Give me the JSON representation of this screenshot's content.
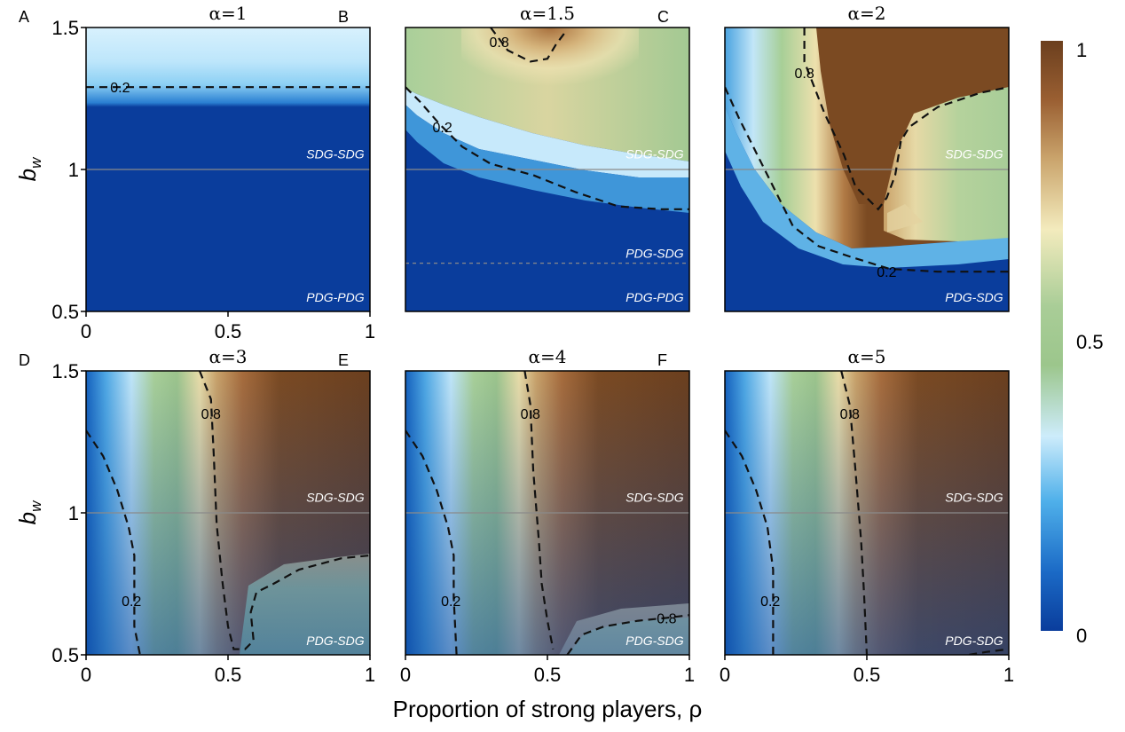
{
  "colors": {
    "deep_blue": "#0a3d9c",
    "light_blue": "#b9e3fb",
    "cream": "#f2e7b8",
    "green": "#9cc48c",
    "brown": "#7b4a22",
    "dark_brown": "#6b3f1e",
    "contour": "#000000",
    "divider": "#8a8a8a"
  },
  "colorbar": {
    "min_label": "0",
    "mid_label": "0.5",
    "max_label": "1"
  },
  "xaxis_title": "Proportion of strong players, ρ",
  "ylabel_base": "b",
  "ylabel_sub": "w",
  "chart_data": [
    {
      "type": "heatmap",
      "letter": "A",
      "title": "α=1",
      "xlim": [
        0,
        1
      ],
      "ylim": [
        0.5,
        1.5
      ],
      "xticks": [
        "0",
        "0.5",
        "1"
      ],
      "yticks": [
        "0.5",
        "1",
        "1.5"
      ],
      "divider_y": 1.0,
      "regions": [
        {
          "label": "SDG-SDG",
          "x": 0.98,
          "y": 1.055
        },
        {
          "label": "PDG-PDG",
          "x": 0.98,
          "y": 0.55
        }
      ],
      "bands": [
        {
          "y_from": 1.22,
          "y_to": 1.5,
          "top": "light",
          "bottom": "blue"
        }
      ],
      "contours": [
        {
          "level": "0.2",
          "label_at": [
            0.12,
            1.29
          ],
          "points": [
            [
              0.0,
              1.29
            ],
            [
              1.0,
              1.29
            ]
          ]
        }
      ]
    },
    {
      "type": "heatmap",
      "letter": "B",
      "title": "α=1.5",
      "xlim": [
        0,
        1
      ],
      "ylim": [
        0.5,
        1.5
      ],
      "xticks": [],
      "yticks": [],
      "divider_y": 1.0,
      "divider2_y": 0.67,
      "regions": [
        {
          "label": "SDG-SDG",
          "x": 0.98,
          "y": 1.055
        },
        {
          "label": "PDG-SDG",
          "x": 0.98,
          "y": 0.705
        },
        {
          "label": "PDG-PDG",
          "x": 0.98,
          "y": 0.55
        }
      ],
      "contours": [
        {
          "level": "0.2",
          "label_at": [
            0.13,
            1.15
          ],
          "points": [
            [
              0.0,
              1.29
            ],
            [
              0.05,
              1.24
            ],
            [
              0.12,
              1.16
            ],
            [
              0.2,
              1.08
            ],
            [
              0.3,
              1.02
            ],
            [
              0.45,
              0.98
            ],
            [
              0.6,
              0.92
            ],
            [
              0.75,
              0.87
            ],
            [
              0.9,
              0.86
            ],
            [
              1.0,
              0.86
            ]
          ]
        },
        {
          "level": "0.8",
          "label_at": [
            0.33,
            1.45
          ],
          "points": [
            [
              0.3,
              1.5
            ],
            [
              0.36,
              1.42
            ],
            [
              0.44,
              1.38
            ],
            [
              0.5,
              1.39
            ],
            [
              0.53,
              1.44
            ],
            [
              0.56,
              1.48
            ]
          ]
        }
      ]
    },
    {
      "type": "heatmap",
      "letter": "C",
      "title": "α=2",
      "xlim": [
        0,
        1
      ],
      "ylim": [
        0.5,
        1.5
      ],
      "xticks": [],
      "yticks": [],
      "divider_y": 1.0,
      "regions": [
        {
          "label": "SDG-SDG",
          "x": 0.98,
          "y": 1.055
        },
        {
          "label": "PDG-SDG",
          "x": 0.98,
          "y": 0.55
        }
      ],
      "contours": [
        {
          "level": "0.2",
          "label_at": [
            0.57,
            0.64
          ],
          "points": [
            [
              0.0,
              1.29
            ],
            [
              0.05,
              1.18
            ],
            [
              0.12,
              1.04
            ],
            [
              0.18,
              0.92
            ],
            [
              0.24,
              0.8
            ],
            [
              0.33,
              0.73
            ],
            [
              0.45,
              0.69
            ],
            [
              0.58,
              0.65
            ],
            [
              0.75,
              0.64
            ],
            [
              0.9,
              0.64
            ],
            [
              1.0,
              0.64
            ]
          ]
        },
        {
          "level": "0.8",
          "label_at": [
            0.28,
            1.34
          ],
          "points": [
            [
              0.28,
              1.5
            ],
            [
              0.28,
              1.38
            ],
            [
              0.35,
              1.2
            ],
            [
              0.42,
              1.05
            ],
            [
              0.46,
              0.94
            ],
            [
              0.5,
              0.9
            ],
            [
              0.54,
              0.86
            ],
            [
              0.57,
              0.9
            ],
            [
              0.6,
              0.98
            ],
            [
              0.62,
              1.1
            ],
            [
              0.65,
              1.15
            ],
            [
              0.75,
              1.22
            ],
            [
              0.9,
              1.27
            ],
            [
              1.0,
              1.29
            ]
          ]
        }
      ]
    },
    {
      "type": "heatmap",
      "letter": "D",
      "title": "α=3",
      "xlim": [
        0,
        1
      ],
      "ylim": [
        0.5,
        1.5
      ],
      "xticks": [
        "0",
        "0.5",
        "1"
      ],
      "yticks": [
        "0.5",
        "1",
        "1.5"
      ],
      "divider_y": 1.0,
      "regions": [
        {
          "label": "SDG-SDG",
          "x": 0.98,
          "y": 1.055
        },
        {
          "label": "PDG-SDG",
          "x": 0.98,
          "y": 0.55
        }
      ],
      "contours": [
        {
          "level": "0.2",
          "label_at": [
            0.16,
            0.69
          ],
          "points": [
            [
              0.0,
              1.29
            ],
            [
              0.06,
              1.2
            ],
            [
              0.11,
              1.08
            ],
            [
              0.15,
              0.95
            ],
            [
              0.17,
              0.85
            ],
            [
              0.17,
              0.72
            ],
            [
              0.17,
              0.6
            ],
            [
              0.19,
              0.5
            ]
          ]
        },
        {
          "level": "0.8",
          "label_at": [
            0.44,
            1.35
          ],
          "points": [
            [
              0.4,
              1.5
            ],
            [
              0.44,
              1.4
            ],
            [
              0.45,
              1.2
            ],
            [
              0.46,
              0.96
            ],
            [
              0.48,
              0.76
            ],
            [
              0.5,
              0.6
            ],
            [
              0.52,
              0.52
            ],
            [
              0.56,
              0.52
            ],
            [
              0.59,
              0.55
            ],
            [
              0.58,
              0.65
            ],
            [
              0.6,
              0.72
            ],
            [
              0.66,
              0.75
            ],
            [
              0.75,
              0.8
            ],
            [
              0.9,
              0.84
            ],
            [
              1.0,
              0.85
            ]
          ]
        }
      ]
    },
    {
      "type": "heatmap",
      "letter": "E",
      "title": "α=4",
      "xlim": [
        0,
        1
      ],
      "ylim": [
        0.5,
        1.5
      ],
      "xticks": [
        "0",
        "0.5",
        "1"
      ],
      "yticks": [],
      "divider_y": 1.0,
      "regions": [
        {
          "label": "SDG-SDG",
          "x": 0.98,
          "y": 1.055
        },
        {
          "label": "PDG-SDG",
          "x": 0.98,
          "y": 0.55
        }
      ],
      "contours": [
        {
          "level": "0.2",
          "label_at": [
            0.16,
            0.69
          ],
          "points": [
            [
              0.0,
              1.29
            ],
            [
              0.06,
              1.2
            ],
            [
              0.11,
              1.08
            ],
            [
              0.15,
              0.95
            ],
            [
              0.17,
              0.85
            ],
            [
              0.17,
              0.7
            ],
            [
              0.18,
              0.5
            ]
          ]
        },
        {
          "level": "0.8",
          "label_at": [
            0.44,
            1.35
          ],
          "points": [
            [
              0.42,
              1.5
            ],
            [
              0.44,
              1.38
            ],
            [
              0.45,
              1.15
            ],
            [
              0.47,
              0.9
            ],
            [
              0.48,
              0.75
            ],
            [
              0.5,
              0.62
            ],
            [
              0.52,
              0.52
            ]
          ]
        },
        {
          "level": "0.8",
          "label_at": [
            0.92,
            0.63
          ],
          "points": [
            [
              0.57,
              0.5
            ],
            [
              0.62,
              0.57
            ],
            [
              0.7,
              0.6
            ],
            [
              0.82,
              0.62
            ],
            [
              0.92,
              0.63
            ],
            [
              1.0,
              0.64
            ]
          ]
        }
      ]
    },
    {
      "type": "heatmap",
      "letter": "F",
      "title": "α=5",
      "xlim": [
        0,
        1
      ],
      "ylim": [
        0.5,
        1.5
      ],
      "xticks": [
        "0",
        "0.5",
        "1"
      ],
      "yticks": [],
      "divider_y": 1.0,
      "regions": [
        {
          "label": "SDG-SDG",
          "x": 0.98,
          "y": 1.055
        },
        {
          "label": "PDG-SDG",
          "x": 0.98,
          "y": 0.55
        }
      ],
      "contours": [
        {
          "level": "0.2",
          "label_at": [
            0.16,
            0.69
          ],
          "points": [
            [
              0.0,
              1.29
            ],
            [
              0.06,
              1.2
            ],
            [
              0.11,
              1.08
            ],
            [
              0.15,
              0.95
            ],
            [
              0.17,
              0.8
            ],
            [
              0.17,
              0.62
            ],
            [
              0.17,
              0.5
            ]
          ]
        },
        {
          "level": "0.8",
          "label_at": [
            0.44,
            1.35
          ],
          "points": [
            [
              0.41,
              1.5
            ],
            [
              0.44,
              1.38
            ],
            [
              0.46,
              1.15
            ],
            [
              0.48,
              0.9
            ],
            [
              0.49,
              0.72
            ],
            [
              0.5,
              0.5
            ]
          ]
        },
        {
          "level": "0.8",
          "label_at": null,
          "points": [
            [
              0.86,
              0.5
            ],
            [
              0.92,
              0.51
            ],
            [
              1.0,
              0.52
            ]
          ]
        }
      ]
    }
  ]
}
